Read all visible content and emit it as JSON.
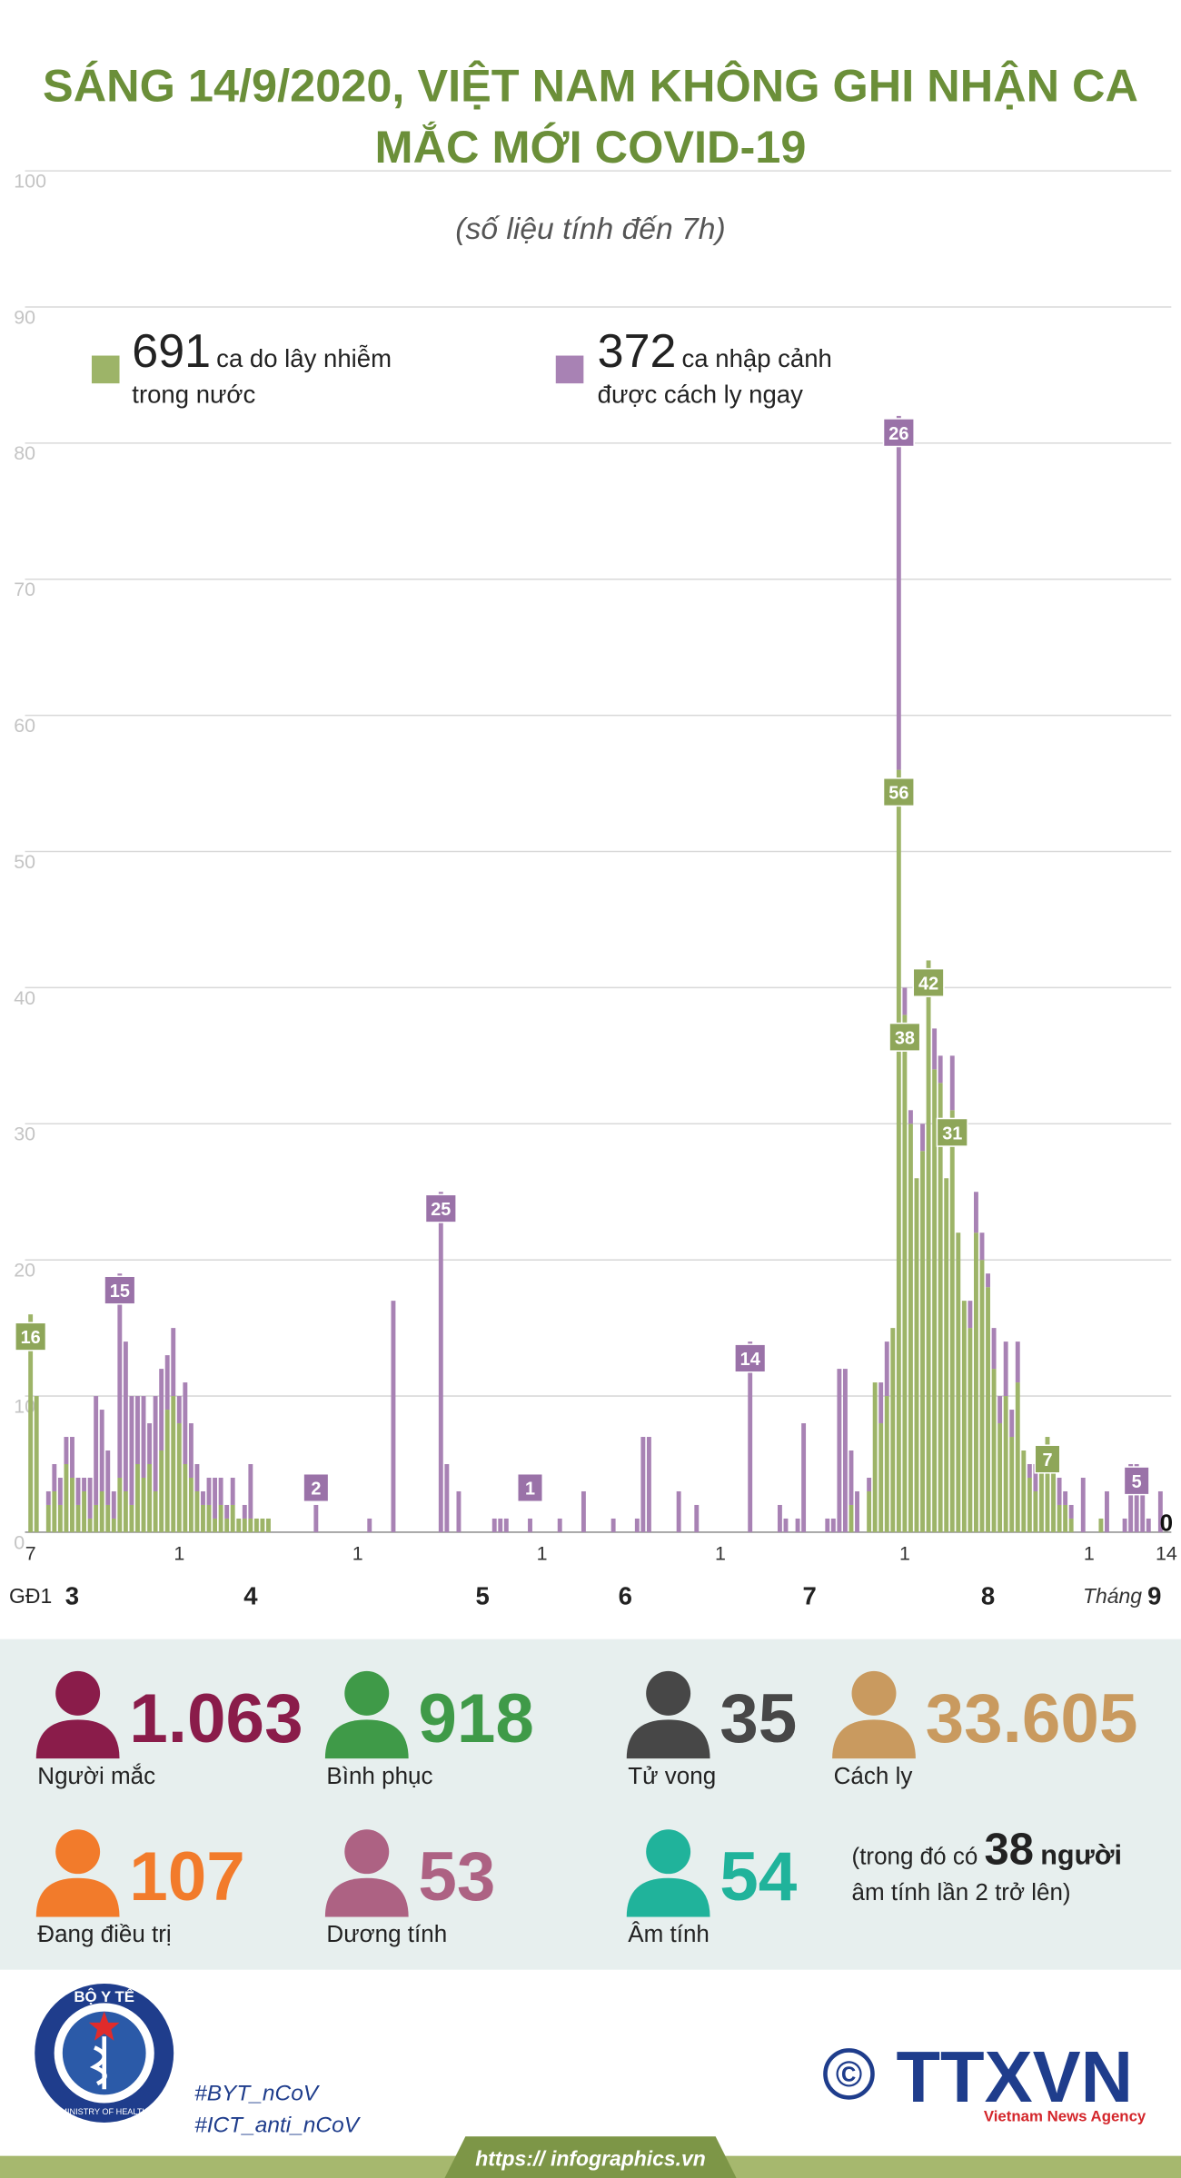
{
  "chart_data": {
    "type": "bar",
    "stacked": true,
    "title": "SÁNG 14/9/2020, VIỆT NAM KHÔNG GHI NHẬN CA MẮC MỚI COVID-19",
    "subtitle": "(số liệu tính đến 7h)",
    "categories": [
      "7",
      null,
      null,
      null,
      null,
      null,
      null,
      null,
      null,
      null,
      null,
      null,
      null,
      null,
      null,
      null,
      null,
      null,
      null,
      null,
      null,
      null,
      null,
      null,
      null,
      "1",
      null,
      null,
      null,
      null,
      null,
      null,
      null,
      null,
      null,
      null,
      null,
      null,
      null,
      null,
      null,
      null,
      null,
      null,
      null,
      null,
      null,
      null,
      null,
      null,
      null,
      null,
      null,
      null,
      null,
      "1",
      null,
      null,
      null,
      null,
      null,
      null,
      null,
      null,
      null,
      null,
      null,
      null,
      null,
      null,
      null,
      null,
      null,
      null,
      null,
      null,
      null,
      null,
      null,
      null,
      null,
      null,
      null,
      null,
      null,
      null,
      "1",
      null,
      null,
      null,
      null,
      null,
      null,
      null,
      null,
      null,
      null,
      null,
      null,
      null,
      null,
      null,
      null,
      null,
      null,
      null,
      null,
      null,
      null,
      null,
      null,
      null,
      null,
      null,
      null,
      null,
      "1",
      null,
      null,
      null,
      null,
      null,
      null,
      null,
      null,
      null,
      null,
      null,
      null,
      null,
      null,
      null,
      null,
      null,
      null,
      null,
      null,
      null,
      null,
      null,
      null,
      null,
      null,
      null,
      null,
      null,
      null,
      "1",
      null,
      null,
      null,
      null,
      null,
      null,
      null,
      null,
      null,
      null,
      null,
      null,
      null,
      null,
      null,
      null,
      null,
      null,
      null,
      null,
      null,
      null,
      null,
      null,
      null,
      null,
      null,
      null,
      null,
      null,
      "1",
      null,
      null,
      null,
      null,
      null,
      null,
      null,
      null,
      null,
      null,
      null,
      null,
      "14"
    ],
    "series": [
      {
        "name": "ca do lây nhiễm trong nước",
        "total": 691,
        "color": "#9db468",
        "label_color": "#8ea659",
        "labeled": [
          0,
          146,
          147,
          151,
          155,
          171,
          191
        ],
        "values": [
          16,
          10,
          0,
          2,
          3,
          2,
          5,
          4,
          2,
          3,
          1,
          2,
          3,
          2,
          1,
          4,
          3,
          2,
          5,
          4,
          5,
          3,
          6,
          9,
          10,
          8,
          5,
          4,
          3,
          2,
          2,
          1,
          2,
          1,
          2,
          1,
          1,
          1,
          1,
          1,
          1,
          0,
          0,
          0,
          0,
          0,
          0,
          0,
          0,
          0,
          0,
          0,
          0,
          0,
          0,
          0,
          0,
          0,
          0,
          0,
          0,
          0,
          0,
          0,
          0,
          0,
          0,
          0,
          0,
          0,
          0,
          0,
          0,
          0,
          0,
          0,
          0,
          0,
          0,
          0,
          0,
          0,
          0,
          0,
          0,
          0,
          0,
          0,
          0,
          0,
          0,
          0,
          0,
          0,
          0,
          0,
          0,
          0,
          0,
          0,
          0,
          0,
          0,
          0,
          0,
          0,
          0,
          0,
          0,
          0,
          0,
          0,
          0,
          0,
          0,
          0,
          0,
          0,
          0,
          0,
          0,
          0,
          0,
          0,
          0,
          0,
          0,
          0,
          0,
          0,
          0,
          0,
          0,
          0,
          0,
          0,
          0,
          0,
          2,
          0,
          0,
          3,
          11,
          8,
          10,
          15,
          56,
          38,
          30,
          26,
          28,
          42,
          34,
          33,
          26,
          31,
          22,
          17,
          15,
          22,
          20,
          18,
          12,
          8,
          10,
          7,
          11,
          6,
          4,
          3,
          5,
          7,
          5,
          2,
          2,
          1,
          0,
          0,
          0,
          0,
          1,
          0,
          0,
          0,
          0,
          0,
          0,
          0,
          0,
          0,
          0,
          0
        ]
      },
      {
        "name": "ca nhập cảnh được cách ly ngay",
        "total": 372,
        "color": "#a882b4",
        "label_color": "#9a72a8",
        "labeled": [
          15,
          48,
          69,
          84,
          121,
          146,
          186
        ],
        "values": [
          0,
          0,
          0,
          1,
          2,
          2,
          2,
          3,
          2,
          1,
          3,
          8,
          6,
          4,
          2,
          15,
          11,
          8,
          5,
          6,
          3,
          7,
          6,
          4,
          5,
          2,
          6,
          4,
          2,
          1,
          2,
          3,
          2,
          1,
          2,
          0,
          1,
          4,
          0,
          0,
          0,
          0,
          0,
          0,
          0,
          0,
          0,
          0,
          2,
          0,
          0,
          0,
          0,
          0,
          0,
          0,
          0,
          1,
          0,
          0,
          0,
          17,
          0,
          0,
          0,
          0,
          0,
          0,
          0,
          25,
          5,
          0,
          3,
          0,
          0,
          0,
          0,
          0,
          1,
          1,
          1,
          0,
          0,
          0,
          1,
          0,
          0,
          0,
          0,
          1,
          0,
          0,
          0,
          3,
          0,
          0,
          0,
          0,
          1,
          0,
          0,
          0,
          1,
          7,
          7,
          0,
          0,
          0,
          0,
          3,
          0,
          0,
          2,
          0,
          0,
          0,
          0,
          0,
          0,
          0,
          0,
          14,
          0,
          0,
          0,
          0,
          2,
          1,
          0,
          1,
          8,
          0,
          0,
          0,
          1,
          1,
          12,
          12,
          4,
          3,
          0,
          1,
          0,
          3,
          4,
          0,
          26,
          2,
          1,
          0,
          2,
          0,
          3,
          2,
          0,
          4,
          0,
          0,
          2,
          3,
          2,
          1,
          3,
          2,
          4,
          2,
          3,
          0,
          1,
          2,
          0,
          0,
          0,
          2,
          1,
          1,
          0,
          4,
          0,
          0,
          0,
          3,
          0,
          0,
          1,
          5,
          5,
          4,
          1,
          0,
          3,
          0
        ]
      }
    ],
    "ylim": [
      0,
      100
    ],
    "yticks": [
      0,
      10,
      20,
      30,
      40,
      50,
      60,
      70,
      80,
      90,
      100
    ],
    "grid": true,
    "x2_prefix": "GĐ1",
    "x2_title": "Tháng",
    "x2ticks": [
      {
        "value": 7,
        "label": "3"
      },
      {
        "value": 37,
        "label": "4"
      },
      {
        "value": 76,
        "label": "5"
      },
      {
        "value": 100,
        "label": "6"
      },
      {
        "value": 131,
        "label": "7"
      },
      {
        "value": 161,
        "label": "8"
      },
      {
        "value": 189,
        "label": "9"
      }
    ]
  },
  "stats": [
    {
      "value": "1.063",
      "label": "Người mắc",
      "color": "#8a1c4a"
    },
    {
      "value": "918",
      "label": "Bình phục",
      "color": "#3f9a48"
    },
    {
      "value": "35",
      "label": "Tử vong",
      "color": "#474747"
    },
    {
      "value": "33.605",
      "label": "Cách ly",
      "color": "#c99a5f"
    },
    {
      "value": "107",
      "label": "Đang điều trị",
      "color": "#f27b2b"
    },
    {
      "value": "53",
      "label": "Dương tính",
      "color": "#ad6283"
    },
    {
      "value": "54",
      "label": "Âm tính",
      "color": "#20b39b"
    }
  ],
  "note": {
    "before": "(trong đó có",
    "value": "38",
    "after": "người",
    "line2": "âm tính lần 2 trở lên)"
  },
  "footer": {
    "logo_top": "BỘ Y TẾ",
    "logo_bottom": "MINISTRY OF HEALTH",
    "hashtags": [
      "#BYT_nCoV",
      "#ICT_anti_nCoV"
    ],
    "copyright": "©",
    "agency": "TTXVN",
    "agency_sub": "Vietnam News Agency",
    "url": "https:// infographics.vn"
  }
}
